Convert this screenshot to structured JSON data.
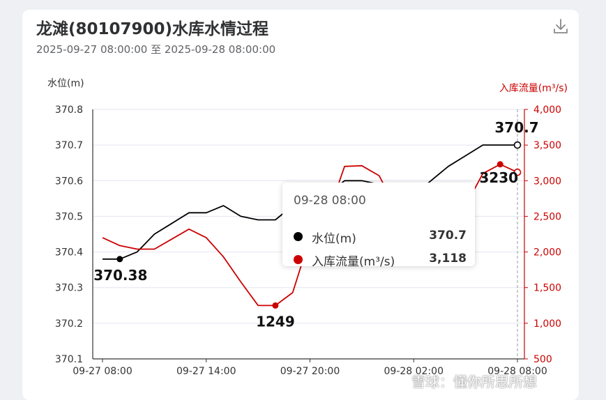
{
  "header": {
    "title": "龙滩(80107900)水库水情过程",
    "subtitle": "2025-09-27 08:00:00 至 2025-09-28 08:00:00",
    "download_icon": "download-icon"
  },
  "tooltip": {
    "time": "09-28 08:00",
    "rows": [
      {
        "name": "水位(m)",
        "value": "370.7",
        "color": "#000000"
      },
      {
        "name": "入库流量(m³/s)",
        "value": "3,118",
        "color": "#cc0000"
      }
    ]
  },
  "watermark": "雪球：懂你所思所想",
  "chart_data": {
    "type": "line",
    "x": [
      "09-27 08:00",
      "09-27 09:00",
      "09-27 10:00",
      "09-27 11:00",
      "09-27 12:00",
      "09-27 13:00",
      "09-27 14:00",
      "09-27 15:00",
      "09-27 16:00",
      "09-27 17:00",
      "09-27 18:00",
      "09-27 19:00",
      "09-27 20:00",
      "09-27 21:00",
      "09-27 22:00",
      "09-27 23:00",
      "09-28 00:00",
      "09-28 01:00",
      "09-28 02:00",
      "09-28 03:00",
      "09-28 04:00",
      "09-28 05:00",
      "09-28 06:00",
      "09-28 07:00",
      "09-28 08:00"
    ],
    "x_tick_labels": [
      "09-27 08:00",
      "09-27 14:00",
      "09-27 20:00",
      "09-28 02:00",
      "09-28 08:00"
    ],
    "series": [
      {
        "name": "水位(m)",
        "axis": "left",
        "color": "#000000",
        "values": [
          370.38,
          370.38,
          370.4,
          370.45,
          370.48,
          370.51,
          370.51,
          370.53,
          370.5,
          370.49,
          370.49,
          370.53,
          370.54,
          370.56,
          370.6,
          370.6,
          370.59,
          370.56,
          370.56,
          370.6,
          370.64,
          370.67,
          370.7,
          370.7,
          370.7
        ],
        "labels": [
          {
            "index": 1,
            "text": "370.38"
          },
          {
            "index": 24,
            "text": "370.7"
          }
        ]
      },
      {
        "name": "入库流量(m³/s)",
        "axis": "right",
        "color": "#cc0000",
        "values": [
          2200,
          2090,
          2040,
          2040,
          2180,
          2320,
          2200,
          1930,
          1580,
          1250,
          1249,
          1430,
          2200,
          2500,
          3200,
          3210,
          3070,
          2600,
          2450,
          2470,
          2600,
          2650,
          3100,
          3230,
          3118
        ],
        "labels": [
          {
            "index": 10,
            "text": "1249"
          },
          {
            "index": 23,
            "text": "3230"
          }
        ]
      }
    ],
    "y_left": {
      "label": "水位(m)",
      "range": [
        370.1,
        370.8
      ],
      "ticks": [
        "370.1",
        "370.2",
        "370.3",
        "370.4",
        "370.5",
        "370.6",
        "370.7",
        "370.8"
      ]
    },
    "y_right": {
      "label": "入库流量(m³/s)",
      "range": [
        500,
        4000
      ],
      "ticks": [
        "500",
        "1,000",
        "1,500",
        "2,000",
        "2,500",
        "3,000",
        "3,500",
        "4,000"
      ]
    },
    "grid": true
  }
}
